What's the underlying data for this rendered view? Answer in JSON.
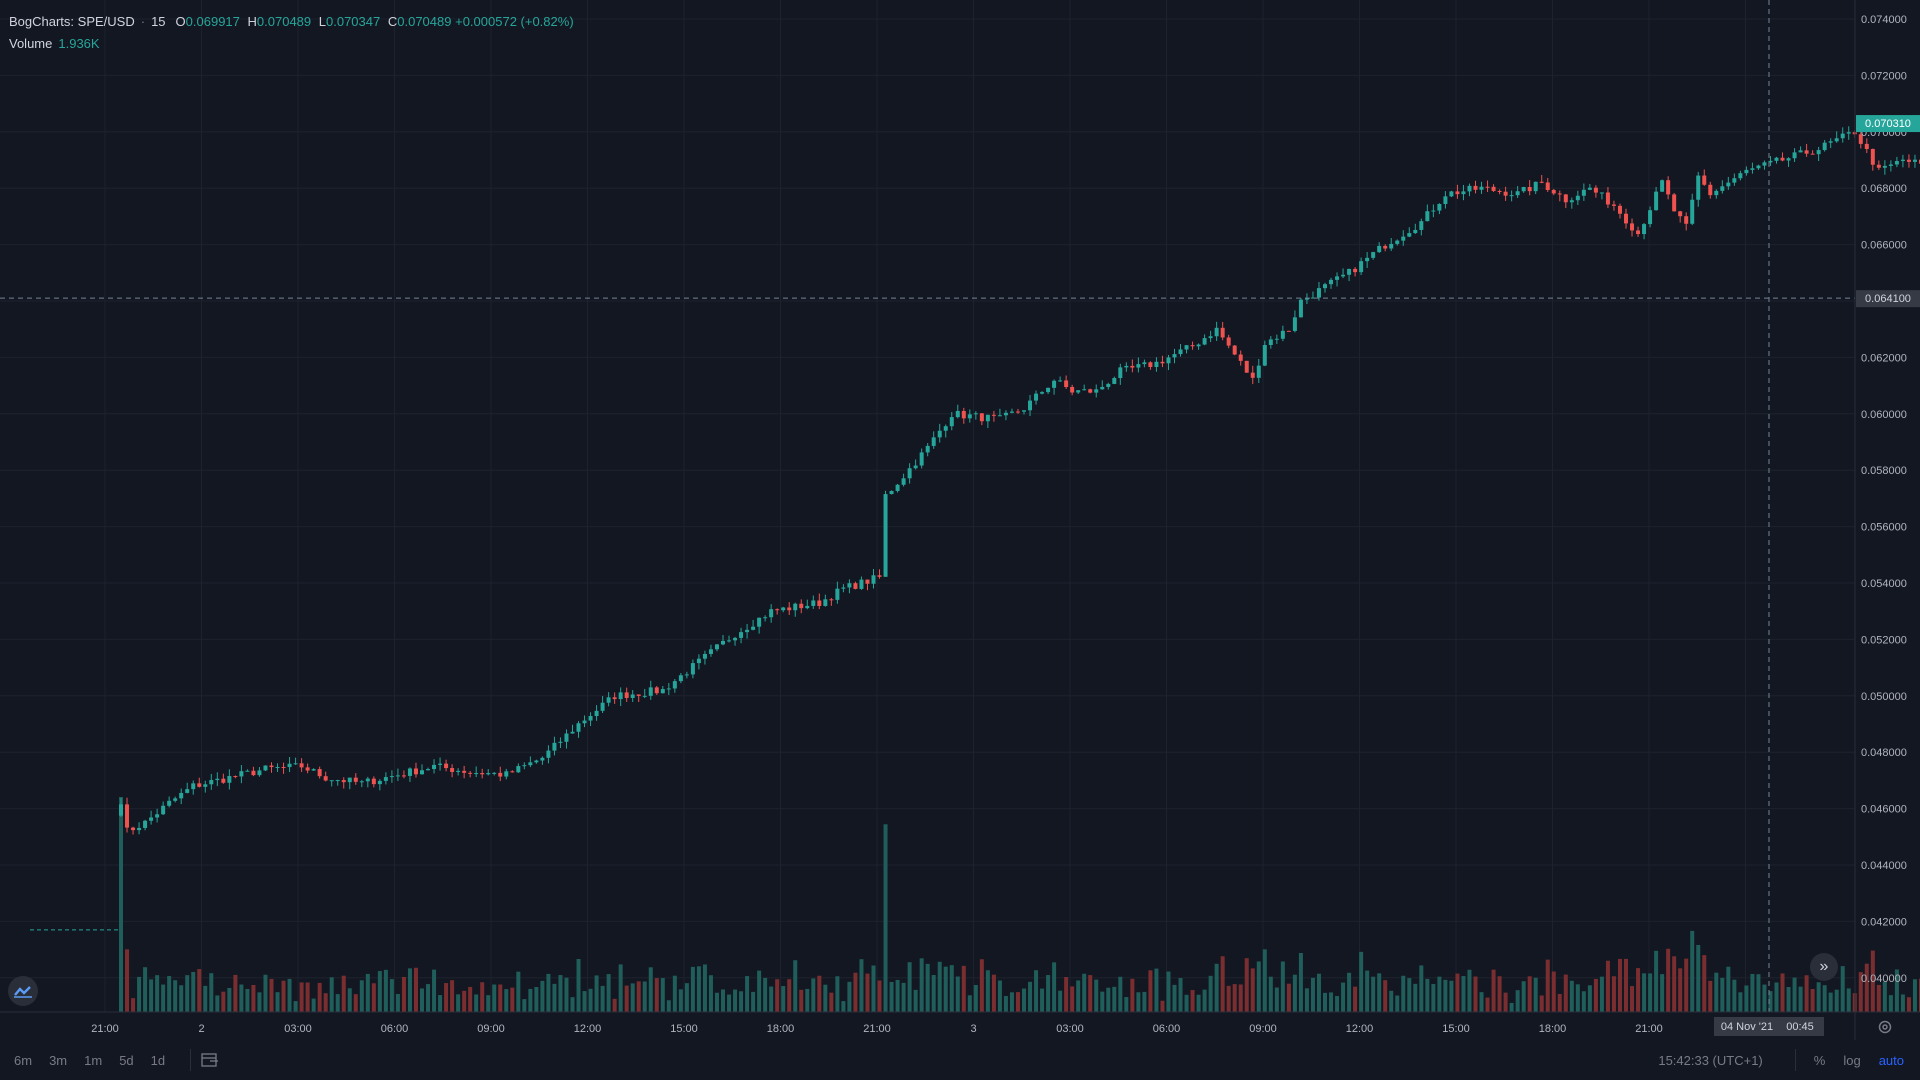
{
  "header": {
    "symbol": "BogCharts: SPE/USD",
    "interval": "15",
    "open_key": "O",
    "open": "0.069917",
    "high_key": "H",
    "high": "0.070489",
    "low_key": "L",
    "low": "0.070347",
    "close_key": "C",
    "close": "0.070489",
    "change": "+0.000572 (+0.82%)",
    "volume_label": "Volume",
    "volume_value": "1.936K"
  },
  "colors": {
    "background": "#131722",
    "grid": "#1e222d",
    "up": "#26a69a",
    "down": "#ef5350",
    "up_volume": "#1f5e5a",
    "down_volume": "#7a2e30",
    "axis_text": "#b2b5be",
    "last_price_bg": "#26a69a",
    "crosshair_label_bg": "#363a45"
  },
  "crosshair": {
    "price_label": "0.064100",
    "date_label": "04 Nov '21",
    "time_label": "00:45"
  },
  "bottom_toolbar": {
    "ranges": [
      "6m",
      "3m",
      "1m",
      "5d",
      "1d"
    ],
    "clock": "15:42:33 (UTC+1)",
    "percent": "%",
    "log": "log",
    "auto": "auto"
  },
  "icons": {
    "goto_date": "calendar-range-icon",
    "scroll_to_realtime": "double-chevron-right-icon",
    "logo": "tradingview-cloud-icon",
    "settings": "gear-icon"
  },
  "chart_data": {
    "type": "candlestick",
    "title": "BogCharts: SPE/USD",
    "interval": "15",
    "y_ticks": [
      "0.074000",
      "0.072000",
      "0.070000",
      "0.068000",
      "0.066000",
      "0.064000",
      "0.062000",
      "0.060000",
      "0.058000",
      "0.056000",
      "0.054000",
      "0.052000",
      "0.050000",
      "0.048000",
      "0.046000",
      "0.044000",
      "0.042000",
      "0.040000"
    ],
    "ylim": [
      0.0389,
      0.0746
    ],
    "x_labels": [
      "21:00",
      "2",
      "03:00",
      "06:00",
      "09:00",
      "12:00",
      "15:00",
      "18:00",
      "21:00",
      "3",
      "03:00",
      "06:00",
      "09:00",
      "12:00",
      "15:00",
      "18:00",
      "21:00",
      "03:00"
    ],
    "last_price": "0.070310",
    "pre_listing_level": 0.0417,
    "price_anchors": [
      [
        0,
        0.0463
      ],
      [
        1,
        0.0452
      ],
      [
        4,
        0.0455
      ],
      [
        8,
        0.0462
      ],
      [
        12,
        0.0468
      ],
      [
        16,
        0.047
      ],
      [
        24,
        0.0474
      ],
      [
        30,
        0.0475
      ],
      [
        34,
        0.0471
      ],
      [
        40,
        0.0469
      ],
      [
        46,
        0.0472
      ],
      [
        52,
        0.0475
      ],
      [
        58,
        0.0473
      ],
      [
        64,
        0.0472
      ],
      [
        70,
        0.0478
      ],
      [
        76,
        0.049
      ],
      [
        82,
        0.05
      ],
      [
        90,
        0.0502
      ],
      [
        96,
        0.0512
      ],
      [
        102,
        0.0522
      ],
      [
        108,
        0.053
      ],
      [
        116,
        0.0533
      ],
      [
        120,
        0.0538
      ],
      [
        126,
        0.0542
      ],
      [
        127,
        0.0571
      ],
      [
        130,
        0.0578
      ],
      [
        134,
        0.0588
      ],
      [
        138,
        0.06
      ],
      [
        146,
        0.0598
      ],
      [
        150,
        0.0602
      ],
      [
        155,
        0.0612
      ],
      [
        158,
        0.0608
      ],
      [
        162,
        0.0608
      ],
      [
        166,
        0.0615
      ],
      [
        172,
        0.0618
      ],
      [
        178,
        0.0624
      ],
      [
        182,
        0.063
      ],
      [
        186,
        0.0618
      ],
      [
        188,
        0.0612
      ],
      [
        190,
        0.0625
      ],
      [
        194,
        0.063
      ],
      [
        196,
        0.064
      ],
      [
        200,
        0.0645
      ],
      [
        204,
        0.065
      ],
      [
        210,
        0.066
      ],
      [
        216,
        0.0668
      ],
      [
        220,
        0.0678
      ],
      [
        226,
        0.068
      ],
      [
        232,
        0.0678
      ],
      [
        236,
        0.0682
      ],
      [
        240,
        0.0676
      ],
      [
        244,
        0.068
      ],
      [
        248,
        0.0674
      ],
      [
        252,
        0.0664
      ],
      [
        256,
        0.0682
      ],
      [
        258,
        0.0672
      ],
      [
        260,
        0.0666
      ],
      [
        262,
        0.0684
      ],
      [
        264,
        0.0678
      ],
      [
        270,
        0.0686
      ],
      [
        276,
        0.069
      ],
      [
        282,
        0.0694
      ],
      [
        288,
        0.07
      ],
      [
        292,
        0.0686
      ],
      [
        296,
        0.069
      ],
      [
        300,
        0.0688
      ],
      [
        304,
        0.0692
      ],
      [
        306,
        0.0705
      ],
      [
        308,
        0.0696
      ],
      [
        312,
        0.0694
      ],
      [
        316,
        0.0698
      ],
      [
        320,
        0.0703
      ]
    ]
  }
}
